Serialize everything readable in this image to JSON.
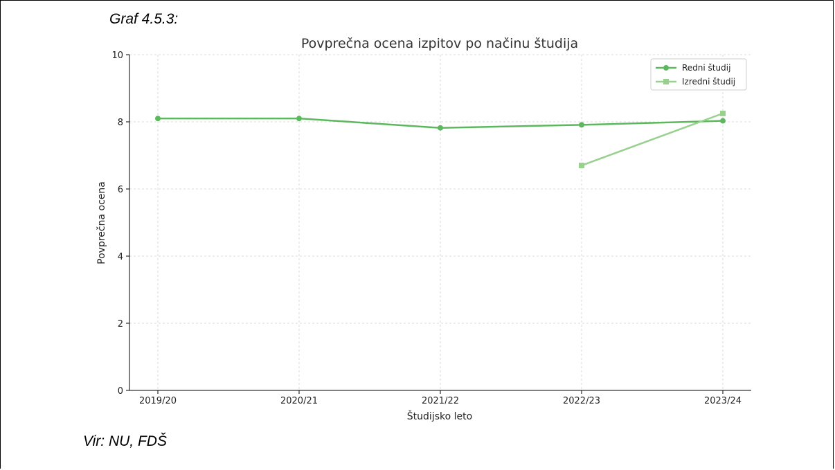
{
  "figure_label": "Graf 4.5.3:",
  "source_note": "Vir: NU, FDŠ",
  "chart_data": {
    "type": "line",
    "title": "Povprečna ocena izpitov po načinu študija",
    "xlabel": "Študijsko leto",
    "ylabel": "Povprečna ocena",
    "categories": [
      "2019/20",
      "2020/21",
      "2021/22",
      "2022/23",
      "2023/24"
    ],
    "ylim": [
      0,
      10
    ],
    "yticks": [
      0,
      2,
      4,
      6,
      8,
      10
    ],
    "grid": true,
    "legend_position": "top-right",
    "series": [
      {
        "name": "Redni študij",
        "marker": "circle",
        "color": "#5cb85c",
        "values": [
          8.1,
          8.1,
          7.82,
          7.91,
          8.03
        ]
      },
      {
        "name": "Izredni študij",
        "marker": "square",
        "color": "#98d08e",
        "values": [
          null,
          null,
          null,
          6.7,
          8.25
        ]
      }
    ]
  }
}
